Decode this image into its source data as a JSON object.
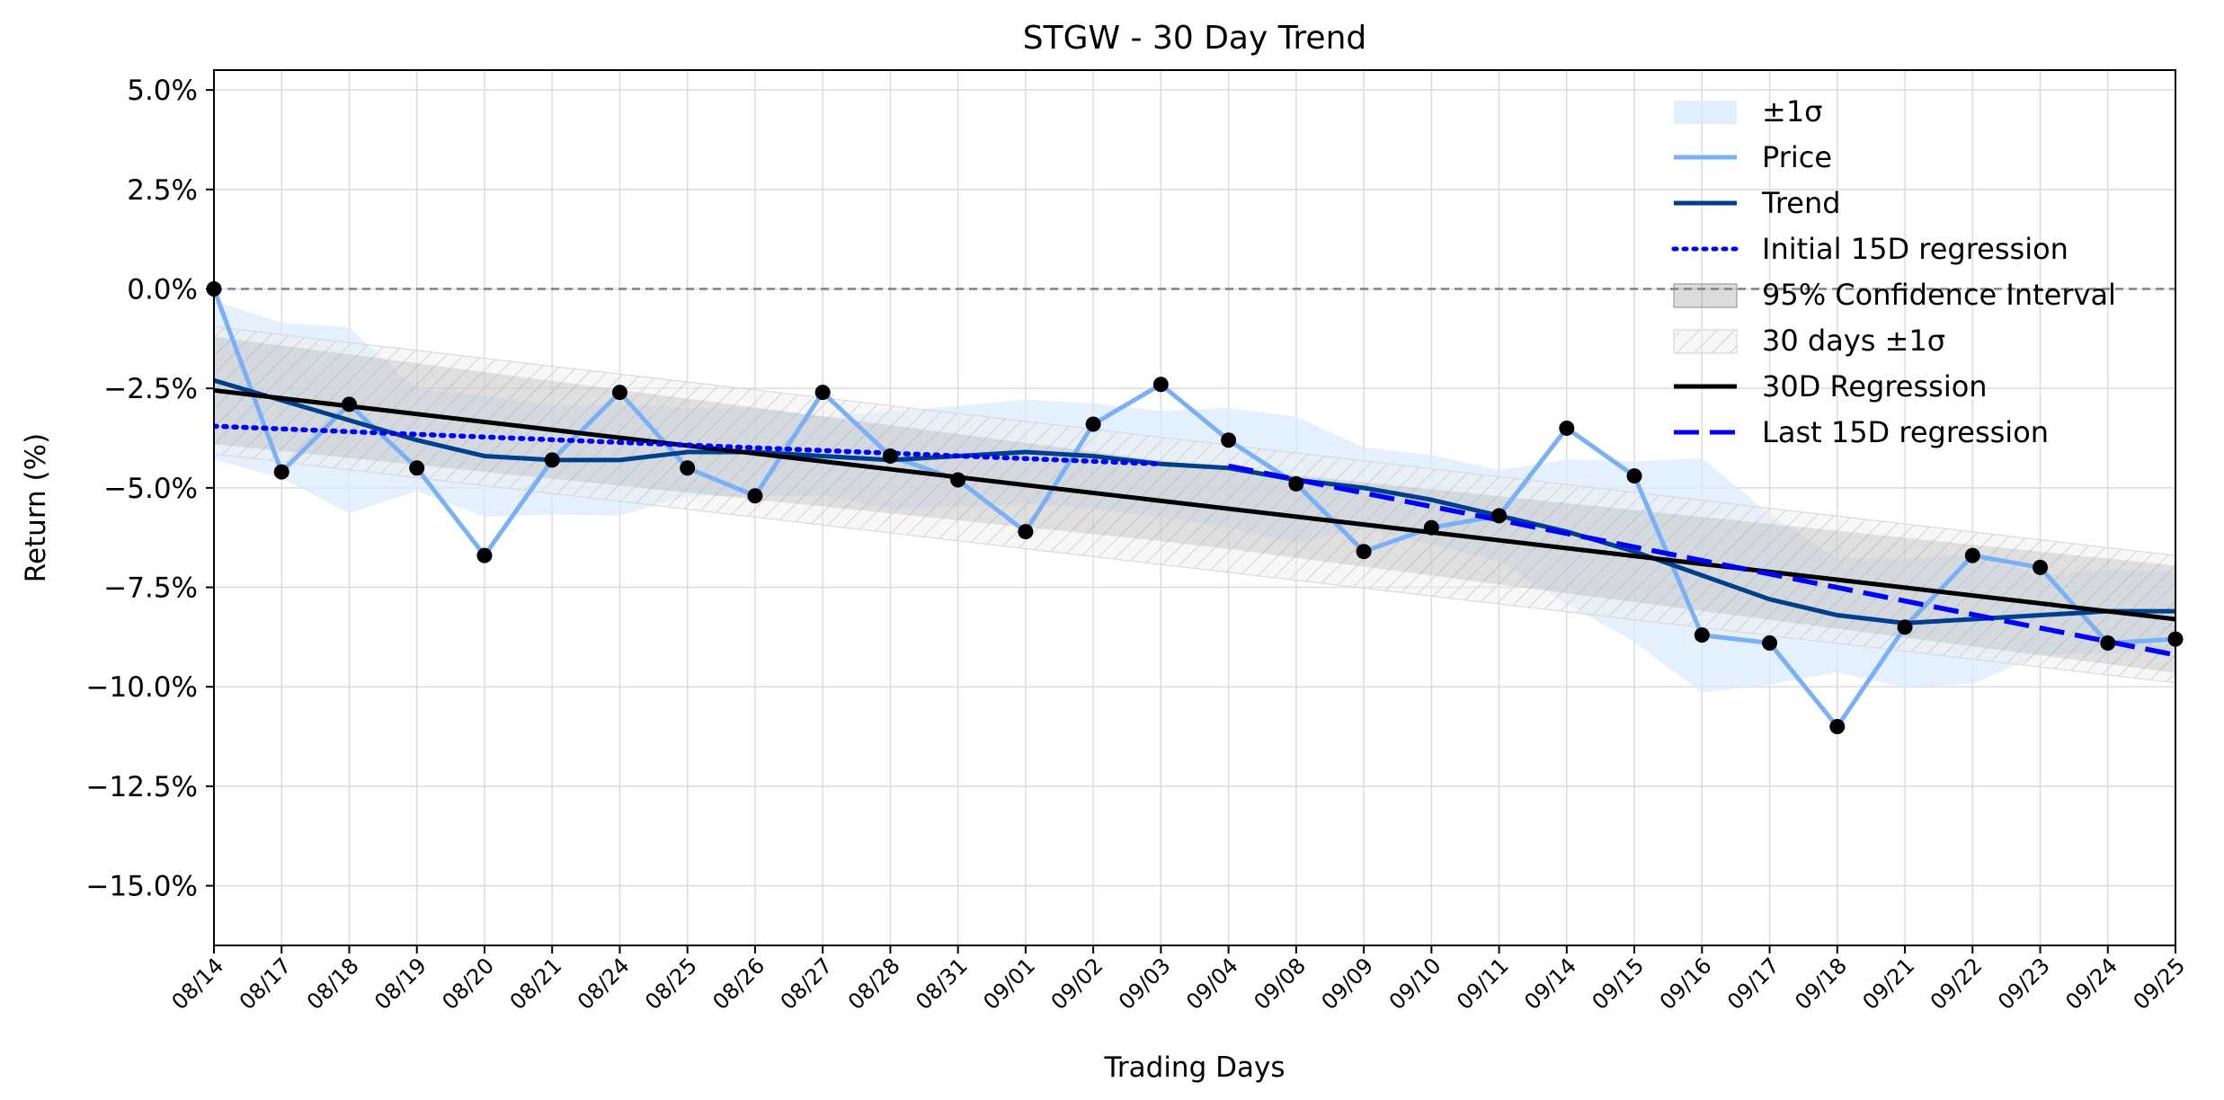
{
  "chart_data": {
    "type": "line",
    "title": "STGW - 30 Day Trend",
    "xlabel": "Trading Days",
    "ylabel": "Return (%)",
    "categories": [
      "08/14",
      "08/17",
      "08/18",
      "08/19",
      "08/20",
      "08/21",
      "08/24",
      "08/25",
      "08/26",
      "08/27",
      "08/28",
      "08/31",
      "09/01",
      "09/02",
      "09/03",
      "09/04",
      "09/08",
      "09/09",
      "09/10",
      "09/11",
      "09/14",
      "09/15",
      "09/16",
      "09/17",
      "09/18",
      "09/21",
      "09/22",
      "09/23",
      "09/24",
      "09/25"
    ],
    "yticks": [
      5.0,
      2.5,
      0.0,
      -2.5,
      -5.0,
      -7.5,
      -10.0,
      -12.5,
      -15.0
    ],
    "ytick_labels": [
      "5.0%",
      "2.5%",
      "0.0%",
      "−2.5%",
      "−5.0%",
      "−7.5%",
      "−10.0%",
      "−12.5%",
      "−15.0%"
    ],
    "ylim": [
      -16.5,
      5.5
    ],
    "grid": true,
    "zero_line": 0.0,
    "legend_position": "top-right",
    "series": [
      {
        "name": "Price",
        "color": "#7ab0f5",
        "values": [
          0.0,
          -4.6,
          -2.9,
          -4.5,
          -6.7,
          -4.3,
          -2.6,
          -4.5,
          -5.2,
          -2.6,
          -4.2,
          -4.8,
          -6.1,
          -3.4,
          -2.4,
          -3.8,
          -4.9,
          -6.6,
          -6.0,
          -5.7,
          -3.5,
          -4.7,
          -8.7,
          -8.9,
          -11.0,
          -8.5,
          -6.7,
          -7.0,
          -8.9,
          -8.8
        ]
      },
      {
        "name": "Trend",
        "color": "#003f8c",
        "values": [
          -2.3,
          -2.8,
          -3.3,
          -3.8,
          -4.2,
          -4.3,
          -4.3,
          -4.1,
          -4.1,
          -4.2,
          -4.3,
          -4.2,
          -4.1,
          -4.2,
          -4.4,
          -4.5,
          -4.8,
          -5.0,
          -5.3,
          -5.7,
          -6.1,
          -6.6,
          -7.2,
          -7.8,
          -8.2,
          -8.4,
          -8.3,
          -8.2,
          -8.1,
          -8.1
        ]
      },
      {
        "name": "30D Regression",
        "color": "#000000",
        "start": -2.55,
        "end": -8.3
      },
      {
        "name": "Initial 15D regression",
        "color": "#0000ff",
        "style": "dotted",
        "start": -3.45,
        "end": -4.4,
        "from_index": 0,
        "to_index": 14
      },
      {
        "name": "Last 15D regression",
        "color": "#0000ff",
        "style": "dashed",
        "start": -4.45,
        "end": -9.2,
        "from_index": 15,
        "to_index": 29
      }
    ],
    "bands": [
      {
        "name": "±1σ",
        "color": "#d8eafc"
      },
      {
        "name": "95% Confidence Interval",
        "color": "#9a9a9a"
      },
      {
        "name": "30 days ±1σ",
        "color": "#e0e0e0",
        "hatch": true
      }
    ],
    "legend": [
      "±1σ",
      "Price",
      "Trend",
      "Initial 15D regression",
      "95% Confidence Interval",
      "30 days ±1σ",
      "30D Regression",
      "Last 15D regression"
    ]
  }
}
